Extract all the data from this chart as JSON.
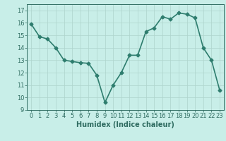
{
  "x": [
    0,
    1,
    2,
    3,
    4,
    5,
    6,
    7,
    8,
    9,
    10,
    11,
    12,
    13,
    14,
    15,
    16,
    17,
    18,
    19,
    20,
    21,
    22,
    23
  ],
  "y": [
    15.9,
    14.9,
    14.7,
    14.0,
    13.0,
    12.9,
    12.8,
    12.75,
    11.8,
    9.6,
    11.0,
    12.0,
    13.4,
    13.4,
    15.3,
    15.6,
    16.5,
    16.3,
    16.8,
    16.7,
    16.4,
    14.0,
    13.0,
    10.6
  ],
  "line_color": "#2e7d6e",
  "marker": "D",
  "marker_size": 2.5,
  "bg_color": "#c8eee8",
  "grid_color": "#aed4cc",
  "xlabel": "Humidex (Indice chaleur)",
  "ylim": [
    9,
    17.5
  ],
  "xlim": [
    -0.5,
    23.5
  ],
  "yticks": [
    9,
    10,
    11,
    12,
    13,
    14,
    15,
    16,
    17
  ],
  "xticks": [
    0,
    1,
    2,
    3,
    4,
    5,
    6,
    7,
    8,
    9,
    10,
    11,
    12,
    13,
    14,
    15,
    16,
    17,
    18,
    19,
    20,
    21,
    22,
    23
  ],
  "tick_color": "#2e6b60",
  "label_fontsize": 7,
  "tick_fontsize": 6,
  "line_width": 1.2
}
